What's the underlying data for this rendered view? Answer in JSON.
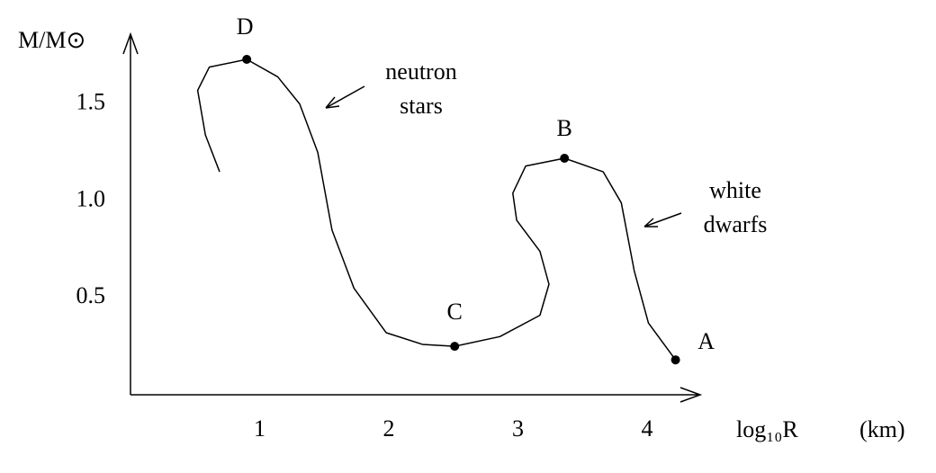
{
  "chart_data": {
    "type": "line",
    "y_label": "M/M⊙",
    "x_label": "log₁₀R",
    "x_unit": "(km)",
    "x": [
      0.69,
      0.58,
      0.52,
      0.61,
      0.9,
      1.14,
      1.31,
      1.45,
      1.56,
      1.73,
      1.98,
      2.26,
      2.51,
      2.86,
      3.17,
      3.24,
      3.17,
      2.99,
      2.96,
      3.06,
      3.36,
      3.66,
      3.8,
      3.9,
      4.01,
      4.22
    ],
    "values": [
      1.15,
      1.34,
      1.57,
      1.69,
      1.73,
      1.64,
      1.5,
      1.25,
      0.85,
      0.55,
      0.32,
      0.26,
      0.25,
      0.3,
      0.41,
      0.57,
      0.74,
      0.9,
      1.04,
      1.18,
      1.22,
      1.15,
      0.99,
      0.64,
      0.37,
      0.18
    ],
    "color": "#000000",
    "points": [
      {
        "label": "D",
        "x": 0.9,
        "y": 1.73
      },
      {
        "label": "C",
        "x": 2.51,
        "y": 0.25
      },
      {
        "label": "B",
        "x": 3.36,
        "y": 1.22
      },
      {
        "label": "A",
        "x": 4.22,
        "y": 0.18
      }
    ],
    "annotations": [
      {
        "lines": [
          "neutron",
          "stars"
        ]
      },
      {
        "lines": [
          "white",
          "dwarfs"
        ]
      }
    ],
    "xlim": [
      0,
      4.39
    ],
    "ylim": [
      0,
      1.86
    ],
    "xticks": [
      1,
      2,
      3,
      4
    ],
    "yticks": [
      0.5,
      {
        "value": 1,
        "label": "1.0"
      },
      1.5
    ]
  }
}
